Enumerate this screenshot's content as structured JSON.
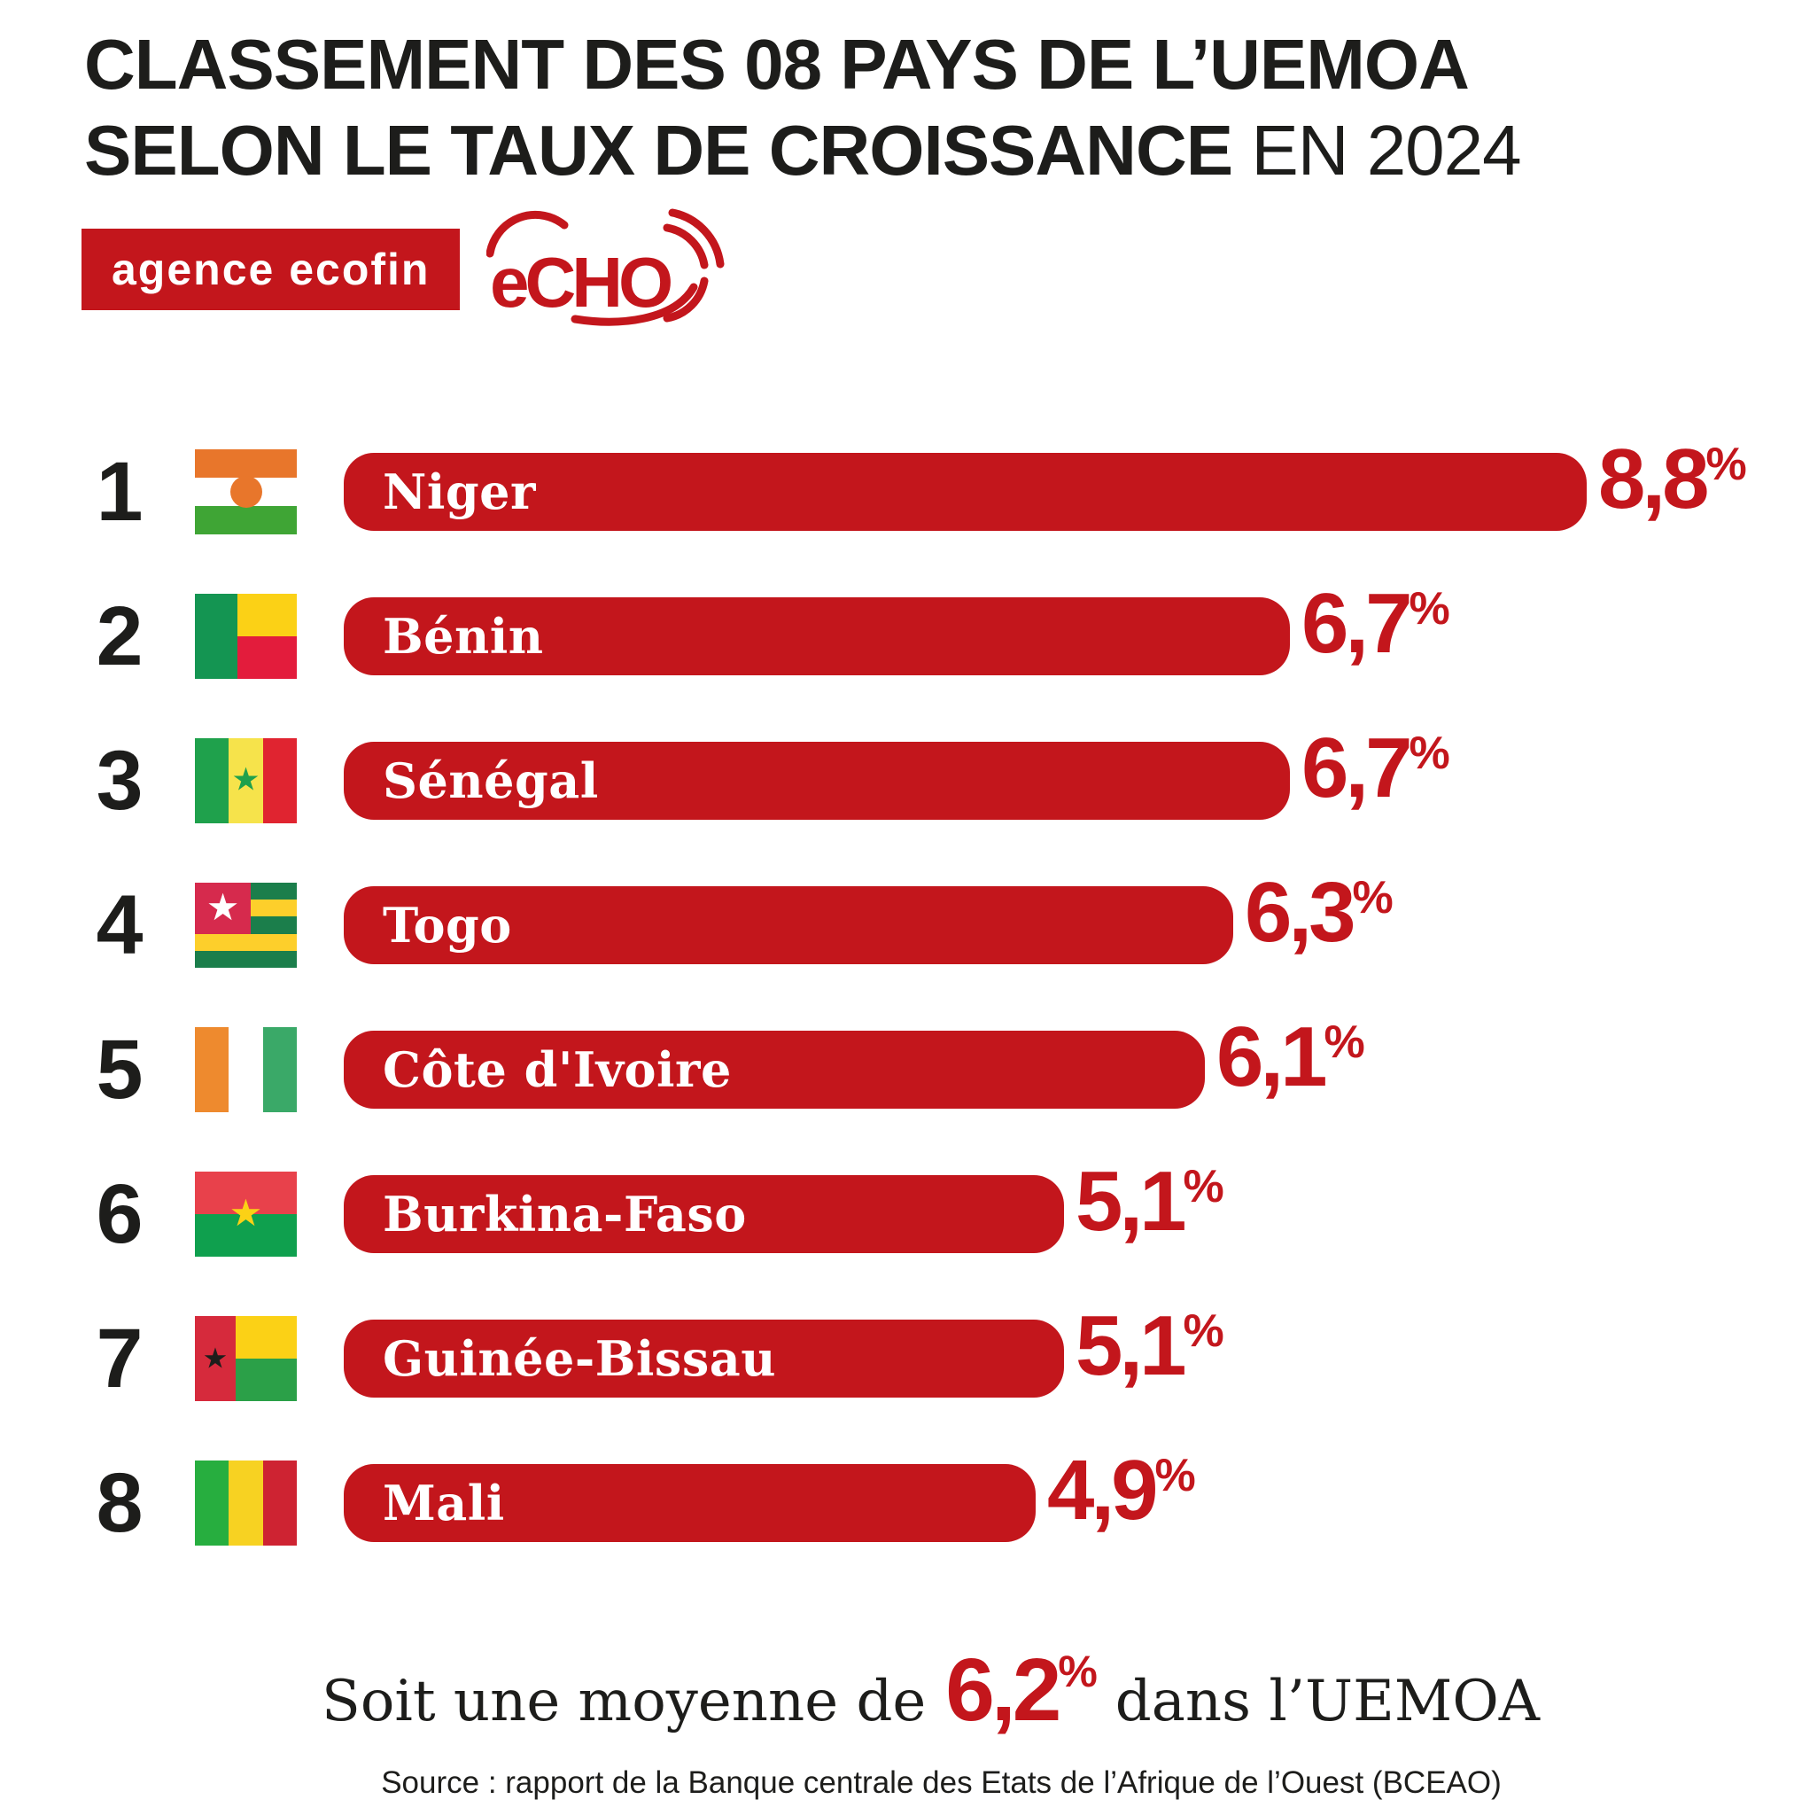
{
  "title": {
    "line1": "CLASSEMENT DES 08 PAYS DE L’UEMOA",
    "line2_bold": "SELON LE TAUX DE CROISSANCE",
    "line2_light": "EN 2024"
  },
  "logos": {
    "agence_ecofin": "agence ecofin",
    "echo": "eCHO"
  },
  "labels": {
    "percent": "%"
  },
  "chart_data": {
    "type": "bar",
    "orientation": "horizontal",
    "title": "Classement des 08 pays de l’UEMOA selon le taux de croissance en 2024",
    "unit": "%",
    "ranks": [
      1,
      2,
      3,
      4,
      5,
      6,
      7,
      8
    ],
    "categories": [
      "Niger",
      "Bénin",
      "Sénégal",
      "Togo",
      "Côte d'Ivoire",
      "Burkina-Faso",
      "Guinée-Bissau",
      "Mali"
    ],
    "values": [
      8.8,
      6.7,
      6.7,
      6.3,
      6.1,
      5.1,
      5.1,
      4.9
    ],
    "value_labels": [
      "8,8",
      "6,7",
      "6,7",
      "6,3",
      "6,1",
      "5,1",
      "5,1",
      "4,9"
    ],
    "flags": [
      "niger",
      "benin",
      "senegal",
      "togo",
      "cote-divoire",
      "burkina-faso",
      "guinee-bissau",
      "mali"
    ],
    "xlim": [
      0,
      8.8
    ],
    "average": {
      "value": 6.2,
      "label": "6,2"
    }
  },
  "summary": {
    "prefix": "Soit une moyenne de",
    "value": "6,2",
    "percent": "%",
    "suffix": "dans l’UEMOA"
  },
  "source": "Source : rapport de la Banque centrale des Etats de l’Afrique de l’Ouest (BCEAO)",
  "colors": {
    "accent_red": "#C3161C",
    "text_black": "#1D1D1B",
    "bar_label_white": "#FFFFFF"
  },
  "flag_colors": {
    "niger": {
      "bands": [
        "#E8762B",
        "#FFFFFF",
        "#3FA535"
      ],
      "circle": "#E8762B"
    },
    "benin": {
      "pole": "#149552",
      "top": "#FBD116",
      "bottom": "#E31C3C"
    },
    "senegal": {
      "bands": [
        "#1FA14C",
        "#F6E34B",
        "#E02430"
      ],
      "star": "#1FA14C"
    },
    "togo": {
      "stripes": [
        "#1B7E4B",
        "#FDCF2B",
        "#1B7E4B",
        "#FDCF2B",
        "#1B7E4B"
      ],
      "canton": "#D62A4D",
      "star": "#FFFFFF"
    },
    "cote-divoire": {
      "bands": [
        "#EE8A2E",
        "#FFFFFF",
        "#3AA968"
      ]
    },
    "burkina-faso": {
      "top": "#E8414B",
      "bottom": "#0FA04E",
      "star": "#FBD116"
    },
    "guinee-bissau": {
      "pole": "#D62A3C",
      "top": "#FBD116",
      "bottom": "#2BA048",
      "star": "#1D1D1B"
    },
    "mali": {
      "bands": [
        "#27AE3F",
        "#F7D222",
        "#CE2332"
      ]
    }
  }
}
